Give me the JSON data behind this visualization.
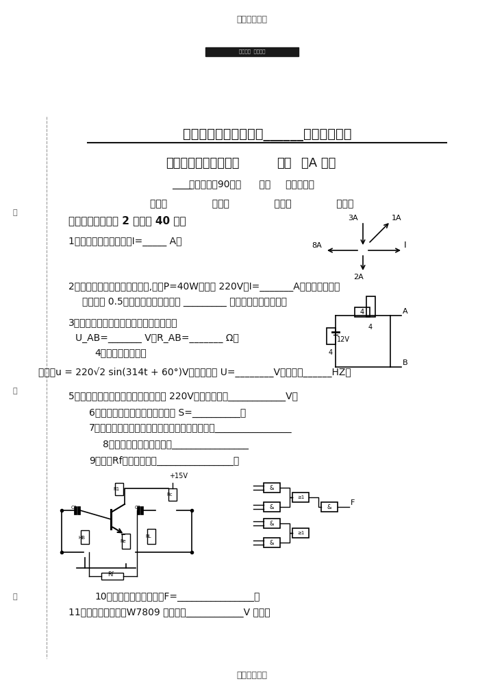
{
  "bg_color": "#ffffff",
  "page_width": 7.36,
  "page_height": 10.19,
  "top_note": "仅供个人使用",
  "watermark_text": "超星尔雅  超星慕课",
  "school_title": "华中师范大学成人专科______学年第二学期",
  "exam_title_normal": "《电工电子技术基础》",
  "exam_title_bold": "试卷",
  "exam_title_end": "（A 卷）",
  "exam_info": "考试时间：90分钟      闭卷     任课老师：",
  "class_row": "班级：               学号：               姓名：               成绩：",
  "s1_title": "一、填空：（每空 2 分，共 40 分）",
  "q1": "1、基尔霍夫电流定律：I=_____ A。",
  "q2_1": "2、欧姆定律：买了一个日光灯,功率P=40W，电压 220V，I=_______A．因为它的功率",
  "q2_2": "因数只有 0.5，应该在它的两端并联 _________ 可以其提高功率因数。",
  "q3_1": "3、电路如图，其戴维南等效电路的参数：",
  "q3_2": "U_AB=_______ V；R_AB=_______ Ω；",
  "q4_label": "4、单相交流电路：",
  "q4_eq": "已知：u = 220√2 sin(314t + 60°)V；则有效值 U=________V；频率是______HZ。",
  "q5": "5、对称三相四线制电路中，相电压是 220V，线电压为：____________V；",
  "q6": "6、三相交流异步电动机的转差率 S=__________。",
  "q7": "7、三相交流异步电动机定子旋转磁场的转速是：________________",
  "q8": "8、三极管的放大条件是：________________",
  "q9": "9、判断Rf的反馈类型：________________。",
  "q10": "10、组合电路如图，输出F=________________。",
  "q11": "11、三端集成稳压器W7809 能够输出____________V 电压。",
  "bottom_note": "仅供个人使用",
  "left_label1": "装",
  "left_label2": "订",
  "left_label3": "线"
}
